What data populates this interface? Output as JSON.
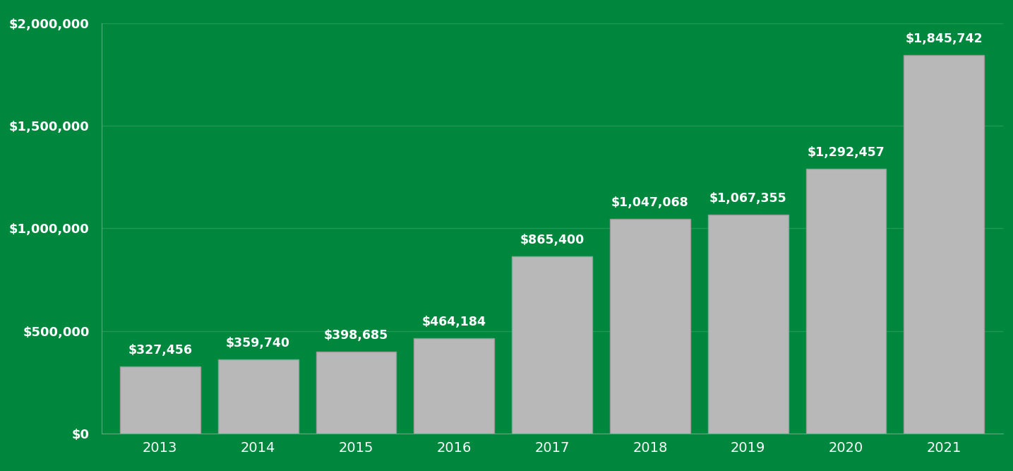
{
  "chart_data": {
    "type": "bar",
    "categories": [
      "2013",
      "2014",
      "2015",
      "2016",
      "2017",
      "2018",
      "2019",
      "2020",
      "2021"
    ],
    "values": [
      327456,
      359740,
      398685,
      464184,
      865400,
      1047068,
      1067355,
      1292457,
      1845742
    ],
    "value_labels": [
      "$327,456",
      "$359,740",
      "$398,685",
      "$464,184",
      "$865,400",
      "$1,047,068",
      "$1,067,355",
      "$1,292,457",
      "$1,845,742"
    ],
    "data_labels": true,
    "color": "#b8b8b8",
    "ylim": [
      0,
      2000000
    ],
    "yticks": [
      {
        "value": 0,
        "label": "$0"
      },
      {
        "value": 500000,
        "label": "$500,000"
      },
      {
        "value": 1000000,
        "label": "$1,000,000"
      },
      {
        "value": 1500000,
        "label": "$1,500,000"
      },
      {
        "value": 2000000,
        "label": "$2,000,000"
      }
    ],
    "grid": true
  }
}
